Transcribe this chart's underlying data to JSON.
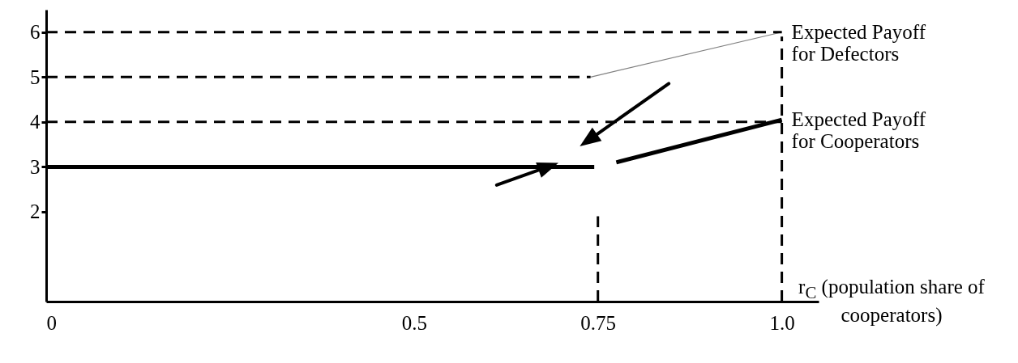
{
  "chart_data": {
    "type": "line",
    "xlabel": "r$_{C}$ (population share of cooperators)",
    "xlim": [
      0,
      1.05
    ],
    "xticks": [
      0,
      0.5,
      0.75,
      {
        "value": 1,
        "label": "1.0"
      }
    ],
    "ylim": [
      0,
      6.5
    ],
    "yticks": [
      2,
      3,
      4,
      5,
      6
    ],
    "series": [
      {
        "name": "Expected Payoff for Defectors",
        "color": "#808080",
        "x": [
          0.74,
          1.0
        ],
        "values": [
          5,
          6
        ],
        "line_style": "solid"
      },
      {
        "name": "Expected Payoff for Cooperators",
        "color": "#000000",
        "x": [
          0,
          0.745,
          0.76,
          0.775,
          1.0
        ],
        "values": [
          3,
          3,
          null,
          3.1,
          4.05
        ],
        "line_style": "solid"
      },
      {
        "color": "#000000",
        "x": [
          0,
          1.0
        ],
        "values": [
          6,
          6
        ],
        "line_style": "dashed"
      },
      {
        "color": "#000000",
        "x": [
          0,
          0.74
        ],
        "values": [
          5,
          5
        ],
        "line_style": "dashed"
      },
      {
        "color": "#000000",
        "x": [
          0,
          1.0
        ],
        "values": [
          4,
          4
        ],
        "line_style": "dashed"
      },
      {
        "color": "#000000",
        "x": [
          0.75,
          0.75
        ],
        "values": [
          0,
          1.9
        ],
        "line_style": "dashed"
      },
      {
        "color": "#000000",
        "x": [
          1.0,
          1.0
        ],
        "values": [
          0,
          5.9
        ],
        "line_style": "dashed"
      }
    ]
  }
}
